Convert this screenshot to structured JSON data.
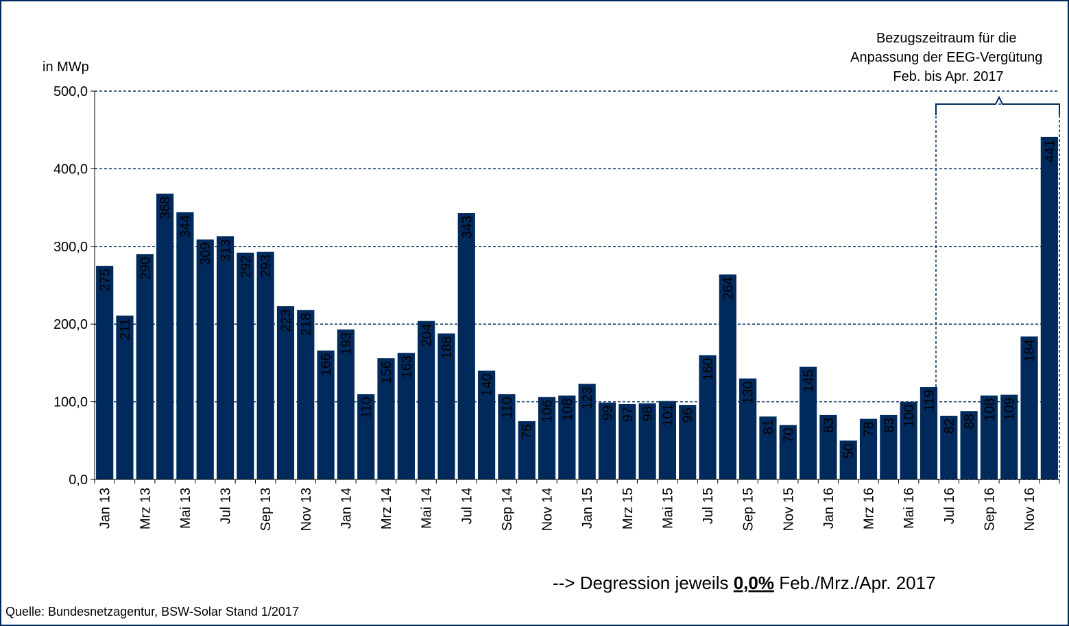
{
  "chart_data": {
    "type": "bar",
    "y_axis_label": "in MWp",
    "categories": [
      "Jan 13",
      null,
      "Mrz 13",
      null,
      "Mai 13",
      null,
      "Jul 13",
      null,
      "Sep 13",
      null,
      "Nov 13",
      null,
      "Jan 14",
      null,
      "Mrz 14",
      null,
      "Mai 14",
      null,
      "Jul 14",
      null,
      "Sep 14",
      null,
      "Nov 14",
      null,
      "Jan 15",
      null,
      "Mrz 15",
      null,
      "Mai 15",
      null,
      "Jul 15",
      null,
      "Sep 15",
      null,
      "Nov 15",
      null,
      "Jan 16",
      null,
      "Mrz 16",
      null,
      "Mai 16",
      null,
      "Jul 16",
      null,
      "Sep 16",
      null,
      "Nov 16",
      null
    ],
    "values": [
      275,
      211,
      290,
      368,
      344,
      309,
      313,
      292,
      293,
      223,
      218,
      166,
      193,
      110,
      156,
      163,
      204,
      188,
      343,
      140,
      110,
      75,
      106,
      108,
      123,
      99,
      97,
      98,
      101,
      96,
      160,
      264,
      130,
      81,
      70,
      145,
      83,
      50,
      78,
      83,
      100,
      119,
      82,
      88,
      108,
      109,
      184,
      441
    ],
    "color": "#002a5c",
    "label_color": "#f0a500",
    "ylim": [
      0,
      500
    ],
    "yticks": [
      {
        "value": 0,
        "label": "0,0"
      },
      {
        "value": 100,
        "label": "100,0"
      },
      {
        "value": 200,
        "label": "200,0"
      },
      {
        "value": 300,
        "label": "300,0"
      },
      {
        "value": 400,
        "label": "400,0"
      },
      {
        "value": 500,
        "label": "500,0"
      }
    ],
    "grid": true,
    "annotation": [
      "Bezugszeitraum für die",
      "Anpassung der EEG-Vergütung",
      "Feb. bis Apr. 2017"
    ],
    "note": {
      "prefix": "--> Degression jeweils",
      "highlight": "0,0%",
      "suffix": "Feb./Mrz./Apr. 2017"
    },
    "source": "Quelle: Bundesnetzagentur, BSW-Solar Stand 1/2017"
  }
}
